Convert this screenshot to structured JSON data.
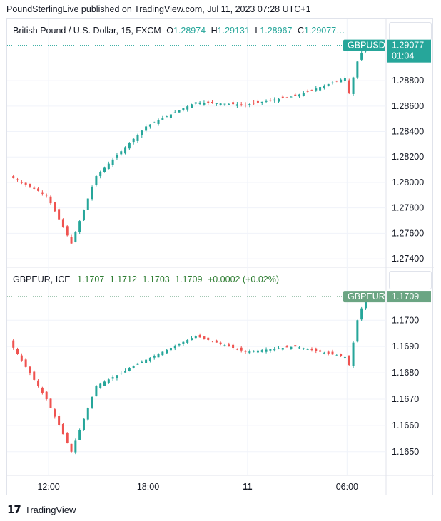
{
  "header": {
    "publisher_text": "PoundSterlingLive published on TradingView.com, Jul 11, 2023 07:28 UTC+1"
  },
  "footer": {
    "brand": "TradingView"
  },
  "colors": {
    "up": "#26a69a",
    "down": "#ef5350",
    "gbpusd_tag": "#26a69a",
    "gbpeur_tag": "#6ba583",
    "grid": "#f0f3fa"
  },
  "pane1": {
    "title": "British Pound / U.S. Dollar, 15, FXCM",
    "ohlc": {
      "o_label": "O",
      "o": "1.28974",
      "h_label": "H",
      "h": "1.29131",
      "l_label": "L",
      "l": "1.28967",
      "c_label": "C",
      "c": "1.29077…"
    },
    "tag": {
      "symbol": "GBPUSD",
      "price": "1.29077",
      "countdown": "01:04"
    },
    "y_ticks": [
      "1.28800",
      "1.28600",
      "1.28400",
      "1.28200",
      "1.28000",
      "1.27800",
      "1.27600",
      "1.27400"
    ]
  },
  "pane2": {
    "title": "GBPEUR, ICE",
    "values": [
      "1.1707",
      "1.1712",
      "1.1703",
      "1.1709"
    ],
    "change": "+0.0002 (+0.02%)",
    "tag": {
      "symbol": "GBPEUR",
      "price": "1.1709"
    },
    "y_ticks": [
      "1.1700",
      "1.1690",
      "1.1680",
      "1.1670",
      "1.1660",
      "1.1650"
    ]
  },
  "x_axis": {
    "labels": [
      "12:00",
      "18:00",
      "11",
      "06:00"
    ]
  },
  "chart_data": [
    {
      "type": "line",
      "title": "British Pound / U.S. Dollar, 15, FXCM",
      "xlabel": "",
      "ylabel": "",
      "x": [
        "10 09:45",
        "10 12:00",
        "10 13:30",
        "10 15:00",
        "10 18:00",
        "10 21:00",
        "11 00:00",
        "11 03:00",
        "11 06:00",
        "11 06:15",
        "11 06:45",
        "11 07:15"
      ],
      "series": [
        {
          "name": "",
          "values": [
            1.2805,
            1.279,
            1.2752,
            1.2805,
            1.2844,
            1.2863,
            1.2861,
            1.2868,
            1.2882,
            1.287,
            1.2895,
            1.29077
          ]
        }
      ],
      "ylim": [
        1.2735,
        1.2912
      ],
      "grid": true
    },
    {
      "type": "line",
      "title": "GBPEUR, ICE",
      "xlabel": "",
      "ylabel": "",
      "x": [
        "10 09:45",
        "10 12:00",
        "10 13:30",
        "10 15:00",
        "10 18:00",
        "10 21:00",
        "11 00:00",
        "11 03:00",
        "11 06:00",
        "11 06:15",
        "11 06:45",
        "11 07:15"
      ],
      "series": [
        {
          "name": "",
          "values": [
            1.1692,
            1.167,
            1.165,
            1.1675,
            1.1685,
            1.1694,
            1.1688,
            1.169,
            1.1686,
            1.1683,
            1.17,
            1.1709
          ]
        }
      ],
      "ylim": [
        1.1641,
        1.1712
      ],
      "grid": true
    }
  ]
}
